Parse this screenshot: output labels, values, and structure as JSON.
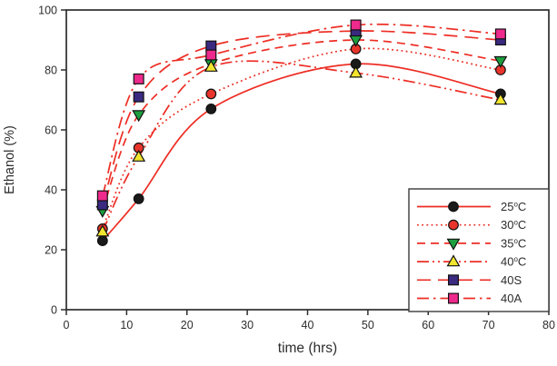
{
  "chart_data": {
    "type": "line",
    "title": "",
    "xlabel": "time (hrs)",
    "ylabel": "Ethanol (%)",
    "xlim": [
      0,
      80
    ],
    "ylim": [
      0,
      100
    ],
    "x_ticks": [
      0,
      10,
      20,
      30,
      40,
      50,
      60,
      70,
      80
    ],
    "y_ticks": [
      0,
      20,
      40,
      60,
      80,
      100
    ],
    "grid": false,
    "legend_position": "lower-right",
    "line_color": "#ed2d24",
    "axis_color": "#2d2d2d",
    "x": [
      6,
      12,
      24,
      48,
      72
    ],
    "series": [
      {
        "name": "25°C",
        "marker": "circle",
        "marker_color": "#1a1a1a",
        "dash": "solid",
        "values": [
          23,
          37,
          67,
          82,
          72
        ]
      },
      {
        "name": "30°C",
        "marker": "circle",
        "marker_color": "#e8352c",
        "dash": "dotted",
        "values": [
          27,
          54,
          72,
          87,
          80
        ]
      },
      {
        "name": "35°C",
        "marker": "triangle-down",
        "marker_color": "#1d9e3f",
        "dash": "dashed",
        "values": [
          33,
          65,
          82,
          90,
          83
        ]
      },
      {
        "name": "40°C",
        "marker": "triangle-up",
        "marker_color": "#f2e52e",
        "dash": "dash-dot-dot",
        "values": [
          26,
          51,
          81,
          79,
          70
        ]
      },
      {
        "name": "40S",
        "marker": "square",
        "marker_color": "#3a2a80",
        "dash": "long-dash",
        "values": [
          35,
          71,
          88,
          93,
          90
        ]
      },
      {
        "name": "40A",
        "marker": "square",
        "marker_color": "#ee2a8c",
        "dash": "dash-dot",
        "values": [
          38,
          77,
          85,
          95,
          92
        ]
      }
    ]
  }
}
